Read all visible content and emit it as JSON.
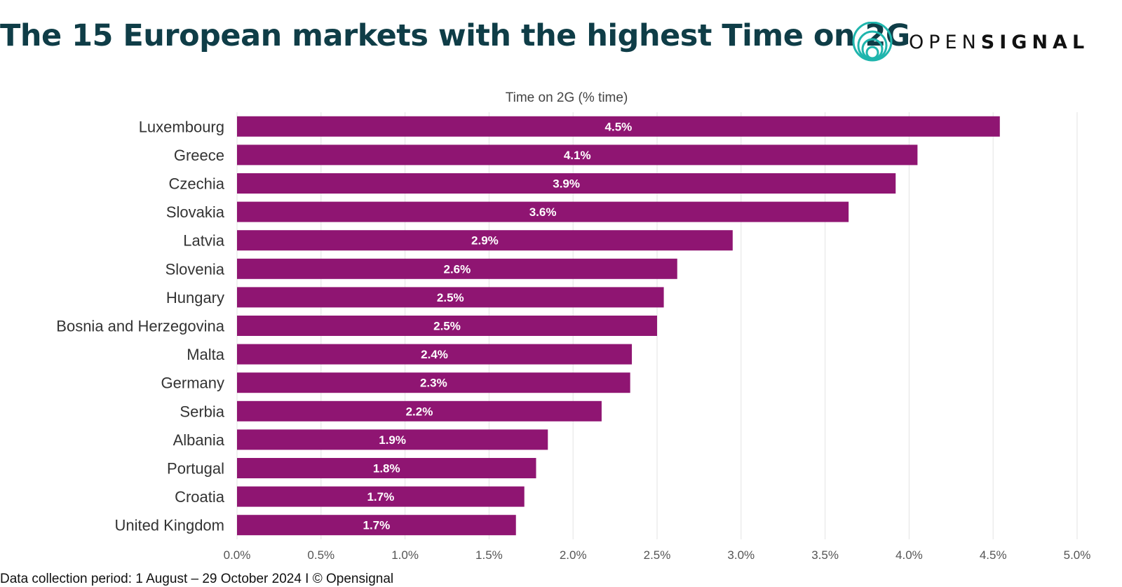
{
  "header": {
    "title": "The 15 European markets with the highest Time on 2G",
    "brand": {
      "light": "OPEN",
      "bold": "SIGNAL",
      "icon": "concentric-circles-logo-icon",
      "color": "#1fb5ad"
    }
  },
  "footer": {
    "text": "Data collection period: 1 August – 29 October 2024 I © Opensignal"
  },
  "chart_data": {
    "type": "bar",
    "orientation": "horizontal",
    "xlabel": "Time on 2G (% time)",
    "xlabel_position": "top",
    "xlim": [
      0,
      5
    ],
    "xticks": [
      0,
      0.5,
      1,
      1.5,
      2,
      2.5,
      3,
      3.5,
      4,
      4.5,
      5
    ],
    "xtick_labels": [
      "0.0%",
      "0.5%",
      "1.0%",
      "1.5%",
      "2.0%",
      "2.5%",
      "3.0%",
      "3.5%",
      "4.0%",
      "4.5%",
      "5.0%"
    ],
    "grid": true,
    "bar_color": "#8f1572",
    "categories": [
      "Luxembourg",
      "Greece",
      "Czechia",
      "Slovakia",
      "Latvia",
      "Slovenia",
      "Hungary",
      "Bosnia and Herzegovina",
      "Malta",
      "Germany",
      "Serbia",
      "Albania",
      "Portugal",
      "Croatia",
      "United Kingdom"
    ],
    "values": [
      4.54,
      4.05,
      3.92,
      3.64,
      2.95,
      2.62,
      2.54,
      2.5,
      2.35,
      2.34,
      2.17,
      1.85,
      1.78,
      1.71,
      1.66
    ],
    "data_labels": [
      "4.5%",
      "4.1%",
      "3.9%",
      "3.6%",
      "2.9%",
      "2.6%",
      "2.5%",
      "2.5%",
      "2.4%",
      "2.3%",
      "2.2%",
      "1.9%",
      "1.8%",
      "1.7%",
      "1.7%"
    ]
  }
}
